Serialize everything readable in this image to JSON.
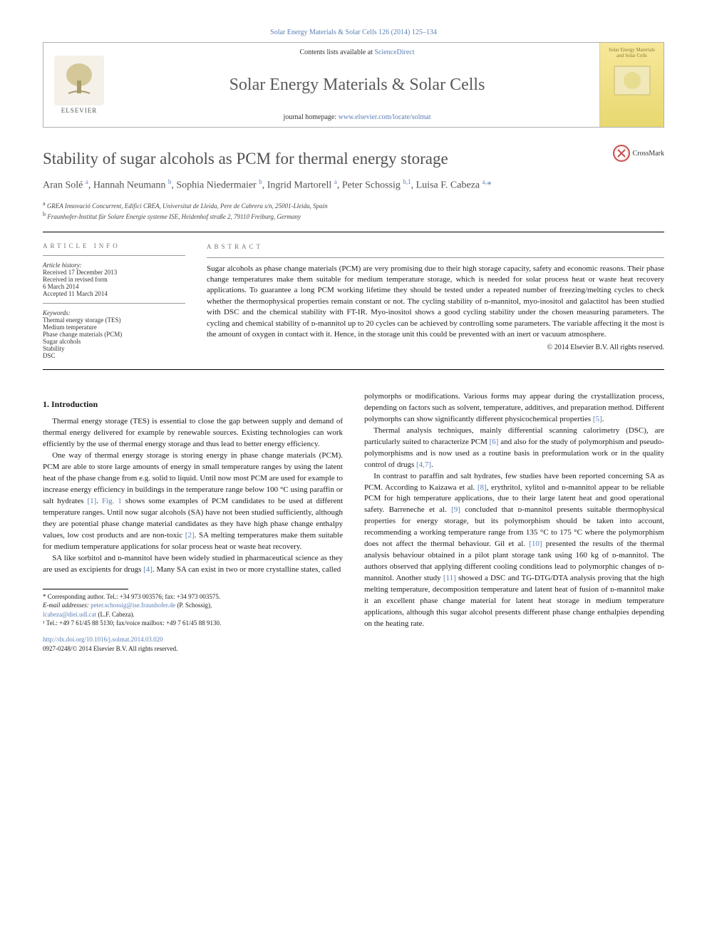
{
  "breadcrumb": {
    "journal_link": "Solar Energy Materials & Solar Cells",
    "citation": " 126 (2014) 125–134"
  },
  "header": {
    "contents_prefix": "Contents lists available at ",
    "contents_link": "ScienceDirect",
    "journal_title": "Solar Energy Materials & Solar Cells",
    "homepage_prefix": "journal homepage: ",
    "homepage_link": "www.elsevier.com/locate/solmat",
    "elsevier_label": "ELSEVIER",
    "cover_line1": "Solar Energy Materials",
    "cover_line2": "and Solar Cells"
  },
  "crossmark": "CrossMark",
  "title": "Stability of sugar alcohols as PCM for thermal energy storage",
  "authors_html": "Aran Solé <sup>a</sup>, Hannah Neumann <sup>b</sup>, Sophia Niedermaier <sup>b</sup>, Ingrid Martorell <sup>a</sup>, Peter Schossig <sup>b,1</sup>, Luisa F. Cabeza <sup>a,</sup><span class='star'>*</span>",
  "affiliations": [
    {
      "sup": "a",
      "text": " GREA Innovació Concurrent, Edifici CREA, Universitat de Lleida, Pere de Cabrera s/n, 25001-Lleida, Spain"
    },
    {
      "sup": "b",
      "text": " Fraunhofer-Institut für Solare Energie systeme ISE, Heidenhof straße 2, 79110 Freiburg, Germany"
    }
  ],
  "article_info": {
    "heading": "ARTICLE INFO",
    "history_label": "Article history:",
    "history": [
      "Received 17 December 2013",
      "Received in revised form",
      "6 March 2014",
      "Accepted 11 March 2014"
    ],
    "keywords_label": "Keywords:",
    "keywords": [
      "Thermal energy storage (TES)",
      "Medium temperature",
      "Phase change materials (PCM)",
      "Sugar alcohols",
      "Stability",
      "DSC"
    ]
  },
  "abstract": {
    "heading": "ABSTRACT",
    "text": "Sugar alcohols as phase change materials (PCM) are very promising due to their high storage capacity, safety and economic reasons. Their phase change temperatures make them suitable for medium temperature storage, which is needed for solar process heat or waste heat recovery applications. To guarantee a long PCM working lifetime they should be tested under a repeated number of freezing/melting cycles to check whether the thermophysical properties remain constant or not. The cycling stability of ᴅ-mannitol, myo-inositol and galactitol has been studied with DSC and the chemical stability with FT-IR. Myo-inositol shows a good cycling stability under the chosen measuring parameters. The cycling and chemical stability of ᴅ-mannitol up to 20 cycles can be achieved by controlling some parameters. The variable affecting it the most is the amount of oxygen in contact with it. Hence, in the storage unit this could be prevented with an inert or vacuum atmosphere.",
    "copyright": "© 2014 Elsevier B.V. All rights reserved."
  },
  "introduction": {
    "heading": "1.  Introduction",
    "paragraphs": [
      "Thermal energy storage (TES) is essential to close the gap between supply and demand of thermal energy delivered for example by renewable sources. Existing technologies can work efficiently by the use of thermal energy storage and thus lead to better energy efficiency.",
      "One way of thermal energy storage is storing energy in phase change materials (PCM). PCM are able to store large amounts of energy in small temperature ranges by using the latent heat of the phase change from e.g. solid to liquid. Until now most PCM are used for example to increase energy efficiency in buildings in the temperature range below 100 °C using paraffin or salt hydrates <span class='ref'>[1]</span>. <span class='ref'>Fig. 1</span> shows some examples of PCM candidates to be used at different temperature ranges. Until now sugar alcohols (SA) have not been studied sufficiently, although they are potential phase change material candidates as they have high phase change enthalpy values, low cost products and are non-toxic <span class='ref'>[2]</span>. SA melting temperatures make them suitable for medium temperature applications for solar process heat or waste heat recovery.",
      "SA like sorbitol and ᴅ-mannitol have been widely studied in pharmaceutical science as they are used as excipients for drugs <span class='ref'>[4]</span>. Many SA can exist in two or more crystalline states, called"
    ]
  },
  "col2_paragraphs": [
    "polymorphs or modifications. Various forms may appear during the crystallization process, depending on factors such as solvent, temperature, additives, and preparation method. Different polymorphs can show significantly different physicochemical properties <span class='ref'>[5]</span>.",
    "Thermal analysis techniques, mainly differential scanning calorimetry (DSC), are particularly suited to characterize PCM <span class='ref'>[6]</span> and also for the study of polymorphism and pseudo-polymorphisms and is now used as a routine basis in preformulation work or in the quality control of drugs <span class='ref'>[4,7]</span>.",
    "In contrast to paraffin and salt hydrates, few studies have been reported concerning SA as PCM. According to Kaizawa et al. <span class='ref'>[8]</span>, erythritol, xylitol and ᴅ-mannitol appear to be reliable PCM for high temperature applications, due to their large latent heat and good operational safety. Barreneche et al. <span class='ref'>[9]</span> concluded that ᴅ-mannitol presents suitable thermophysical properties for energy storage, but its polymorphism should be taken into account, recommending a working temperature range from 135 °C to 175 °C where the polymorphism does not affect the thermal behaviour. Gil et al. <span class='ref'>[10]</span> presented the results of the thermal analysis behaviour obtained in a pilot plant storage tank using 160 kg of ᴅ-mannitol. The authors observed that applying different cooling conditions lead to polymorphic changes of ᴅ-mannitol. Another study <span class='ref'>[11]</span> showed a DSC and TG-DTG/DTA analysis proving that the high melting temperature, decomposition temperature and latent heat of fusion of ᴅ-mannitol make it an excellent phase change material for latent heat storage in medium temperature applications, although this sugar alcohol presents different phase change enthalpies depending on the heating rate."
  ],
  "footnotes": {
    "corresponding": "* Corresponding author. Tel.: +34 973 003576; fax: +34 973 003575.",
    "emails_label": "E-mail addresses: ",
    "email1": "peter.schossig@ise.fraunhofer.de",
    "email1_who": " (P. Schossig),",
    "email2": "lcabeza@diei.udl.cat",
    "email2_who": " (L.F. Cabeza).",
    "note1": "¹ Tel.: +49 7 61/45 88 5130; fax/voice mailbox: +49 7 61/45 88 9130."
  },
  "doi": {
    "link": "http://dx.doi.org/10.1016/j.solmat.2014.03.020",
    "issn_line": "0927-0248/© 2014 Elsevier B.V. All rights reserved."
  },
  "colors": {
    "link": "#5b7fb5",
    "title_gray": "#505050",
    "cover_bg": "#f7e89a"
  }
}
